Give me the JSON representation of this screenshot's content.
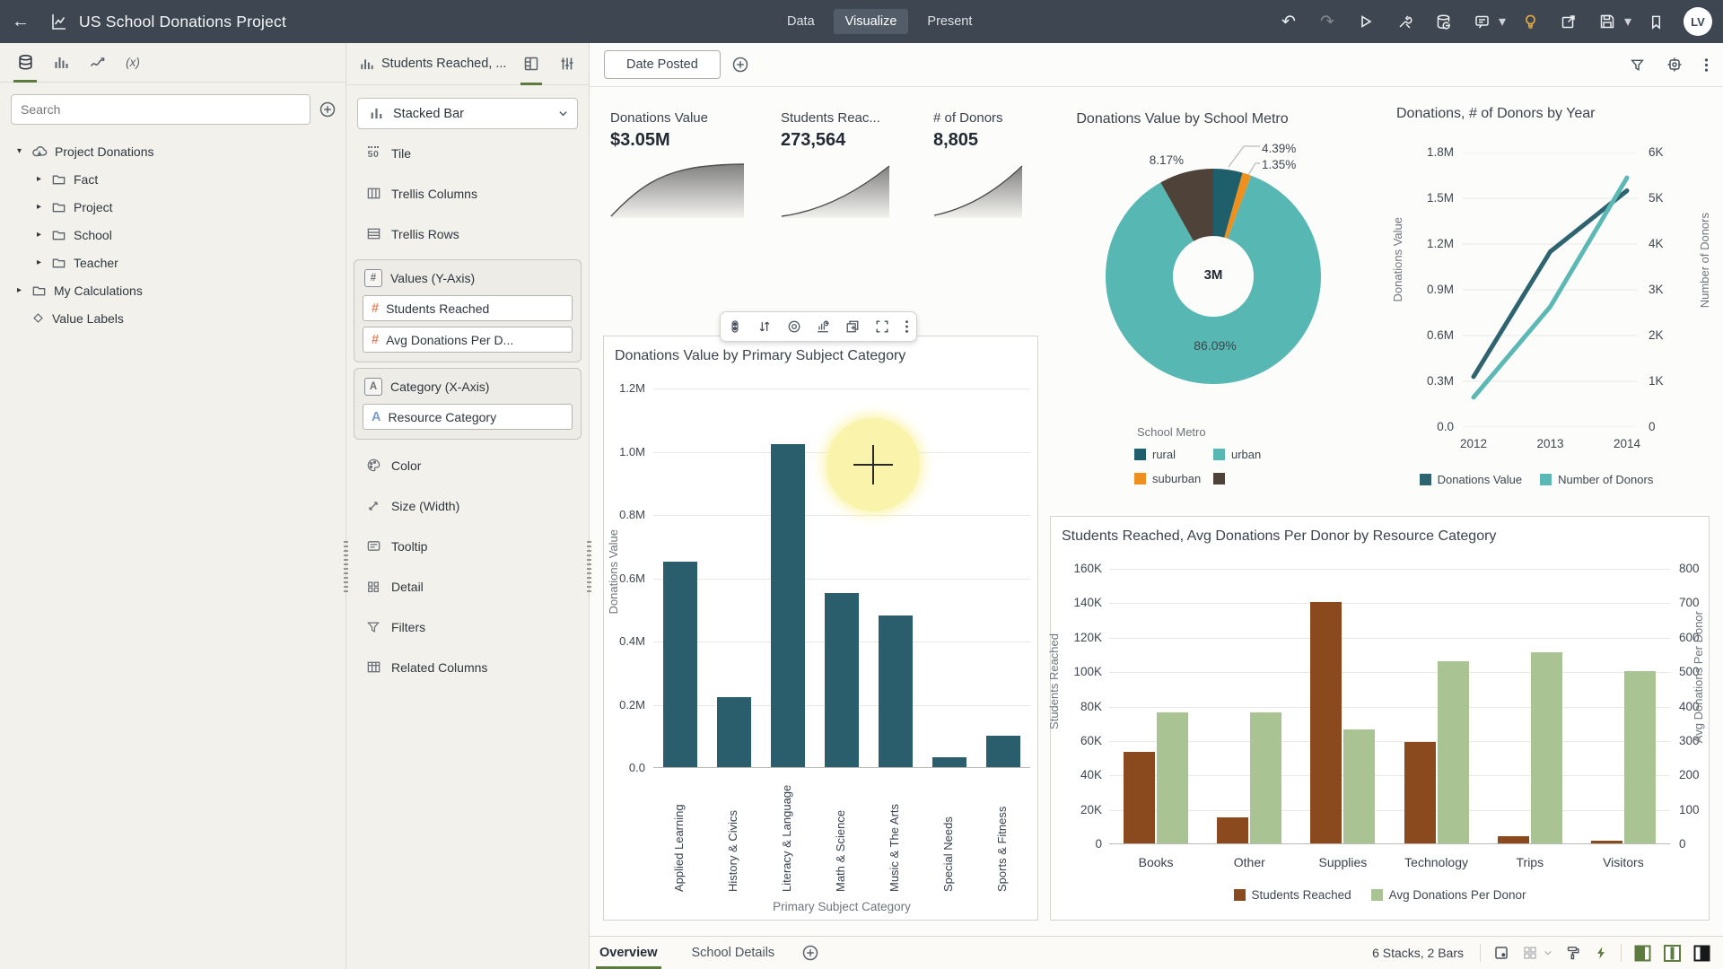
{
  "topbar": {
    "title": "US School Donations Project",
    "tabs": [
      {
        "label": "Data",
        "active": false
      },
      {
        "label": "Visualize",
        "active": true
      },
      {
        "label": "Present",
        "active": false
      }
    ],
    "avatar": "LV"
  },
  "data_panel": {
    "search_placeholder": "Search",
    "tree": [
      {
        "label": "Project Donations",
        "icon": "cloud",
        "level": 0,
        "expanded": true,
        "expandable": true
      },
      {
        "label": "Fact",
        "icon": "folder",
        "level": 1,
        "expanded": false,
        "expandable": true
      },
      {
        "label": "Project",
        "icon": "folder",
        "level": 1,
        "expanded": false,
        "expandable": true
      },
      {
        "label": "School",
        "icon": "folder",
        "level": 1,
        "expanded": false,
        "expandable": true
      },
      {
        "label": "Teacher",
        "icon": "folder",
        "level": 1,
        "expanded": false,
        "expandable": true
      },
      {
        "label": "My Calculations",
        "icon": "folder",
        "level": 0,
        "expanded": false,
        "expandable": true
      },
      {
        "label": "Value Labels",
        "icon": "diamond",
        "level": 0,
        "expanded": false,
        "expandable": false
      }
    ]
  },
  "grammar_panel": {
    "title": "Students Reached, ...",
    "viz_type": "Stacked Bar",
    "rows": {
      "tile": "Tile",
      "trellis_columns": "Trellis Columns",
      "trellis_rows": "Trellis Rows",
      "color": "Color",
      "size": "Size (Width)",
      "tooltip": "Tooltip",
      "detail": "Detail",
      "filters": "Filters",
      "related": "Related Columns"
    },
    "values_group": {
      "label": "Values (Y-Axis)",
      "pills": [
        "Students Reached",
        "Avg Donations Per D..."
      ]
    },
    "category_group": {
      "label": "Category (X-Axis)",
      "pills": [
        "Resource Category"
      ]
    }
  },
  "canvas": {
    "filter_pill": "Date Posted",
    "footer": {
      "tabs": [
        "Overview",
        "School Details"
      ],
      "active": 0,
      "status": "6 Stacks, 2 Bars"
    }
  },
  "chart_data": [
    {
      "type": "kpi",
      "title": "Donations Value",
      "value": "$3.05M"
    },
    {
      "type": "kpi",
      "title": "Students Reac...",
      "value": "273,564"
    },
    {
      "type": "kpi",
      "title": "# of Donors",
      "value": "8,805"
    },
    {
      "type": "pie",
      "title": "Donations Value by School Metro",
      "center_label": "3M",
      "legend_title": "School Metro",
      "slices": [
        {
          "label": "rural",
          "pct": 4.39,
          "color": "#1e5f6b"
        },
        {
          "label": "suburban",
          "pct": 1.35,
          "color": "#ee8f1e"
        },
        {
          "label": "urban",
          "pct": 86.09,
          "color": "#57b7b2"
        },
        {
          "label": "",
          "pct": 8.17,
          "color": "#4e4239"
        }
      ],
      "legend": [
        {
          "label": "rural",
          "color": "#1e5f6b"
        },
        {
          "label": "urban",
          "color": "#57b7b2"
        },
        {
          "label": "suburban",
          "color": "#ee8f1e"
        },
        {
          "label": "",
          "color": "#4e4239"
        }
      ],
      "callouts": {
        "large": "86.09%",
        "side": "8.17%",
        "line1": "4.39%",
        "line2": "1.35%"
      }
    },
    {
      "type": "line",
      "title": "Donations, # of Donors by Year",
      "x": [
        "2012",
        "2013",
        "2014"
      ],
      "series": [
        {
          "name": "Donations Value",
          "color": "#2d6470",
          "axis": "left",
          "values": [
            0.33,
            1.15,
            1.55
          ]
        },
        {
          "name": "Number of Donors",
          "color": "#5cb8b4",
          "axis": "right",
          "values": [
            650,
            2630,
            5450
          ]
        }
      ],
      "left_axis": {
        "label": "Donations Value",
        "max": 1.8,
        "ticks": [
          "1.8M",
          "1.5M",
          "1.2M",
          "0.9M",
          "0.6M",
          "0.3M",
          "0.0"
        ]
      },
      "right_axis": {
        "label": "Number of Donors",
        "max": 6000,
        "ticks": [
          "6K",
          "5K",
          "4K",
          "3K",
          "2K",
          "1K",
          "0"
        ]
      }
    },
    {
      "type": "bar",
      "title": "Donations Value by Primary Subject Category",
      "xlabel": "Primary Subject Category",
      "ylabel": "Donations Value",
      "ymax": 1.2,
      "yticks": [
        "1.2M",
        "1.0M",
        "0.8M",
        "0.6M",
        "0.4M",
        "0.2M",
        "0.0"
      ],
      "color": "#2a5e6c",
      "categories": [
        "Applied Learning",
        "History & Civics",
        "Literacy & Language",
        "Math & Science",
        "Music & The Arts",
        "Special Needs",
        "Sports & Fitness"
      ],
      "values": [
        0.65,
        0.22,
        1.02,
        0.55,
        0.48,
        0.03,
        0.1
      ]
    },
    {
      "type": "bar",
      "title": "Students Reached, Avg Donations Per Donor by Resource Category",
      "categories": [
        "Books",
        "Other",
        "Supplies",
        "Technology",
        "Trips",
        "Visitors"
      ],
      "series": [
        {
          "name": "Students Reached",
          "color": "#8a4a1e",
          "axis": "left",
          "values": [
            53000,
            15000,
            140000,
            59000,
            4000,
            1500
          ]
        },
        {
          "name": "Avg Donations Per Donor",
          "color": "#a9c492",
          "axis": "right",
          "values": [
            380,
            380,
            330,
            530,
            555,
            500
          ]
        }
      ],
      "left_axis": {
        "label": "Students Reached",
        "max": 160000,
        "ticks": [
          "160K",
          "140K",
          "120K",
          "100K",
          "80K",
          "60K",
          "40K",
          "20K",
          "0"
        ]
      },
      "right_axis": {
        "label": "Avg Donations Per Donor",
        "max": 800,
        "ticks": [
          "800",
          "700",
          "600",
          "500",
          "400",
          "300",
          "200",
          "100",
          "0"
        ]
      }
    }
  ]
}
